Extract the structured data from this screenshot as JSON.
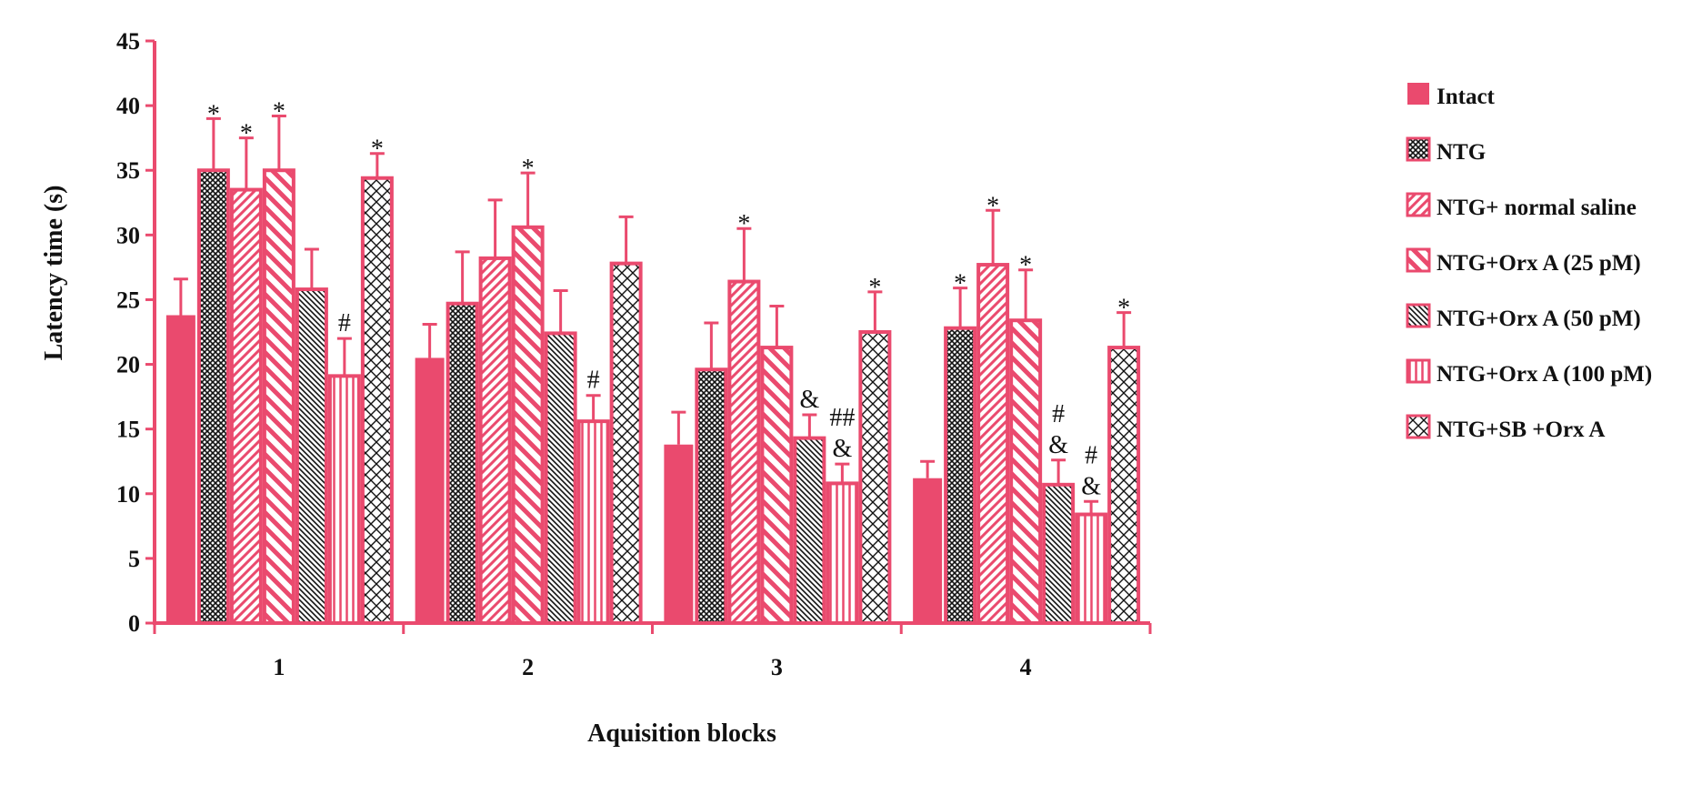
{
  "chart_data": {
    "type": "bar",
    "title": "",
    "xlabel": "Aquisition  blocks",
    "ylabel": "Latency time (s)",
    "ylim": [
      0,
      45
    ],
    "yticks": [
      0,
      5,
      10,
      15,
      20,
      25,
      30,
      35,
      40,
      45
    ],
    "categories": [
      "1",
      "2",
      "3",
      "4"
    ],
    "grid": false,
    "legend_position": "right",
    "colors": {
      "accent": "#ea4a6e",
      "ink": "#111111"
    },
    "series": [
      {
        "name": "Intact",
        "pattern": "solid",
        "values": [
          23.8,
          20.5,
          13.8,
          11.2
        ],
        "errors": [
          2.8,
          2.6,
          2.5,
          1.3
        ]
      },
      {
        "name": "NTG",
        "pattern": "crosshatch",
        "values": [
          35.0,
          24.7,
          19.6,
          22.8
        ],
        "errors": [
          4.0,
          4.0,
          3.6,
          3.1
        ]
      },
      {
        "name": "NTG+ normal saline",
        "pattern": "diag-right",
        "values": [
          33.5,
          28.2,
          26.4,
          27.7
        ],
        "errors": [
          4.0,
          4.5,
          4.1,
          4.2
        ]
      },
      {
        "name": "NTG+Orx A (25 pM)",
        "pattern": "diag-left-wide",
        "values": [
          35.0,
          30.6,
          21.3,
          23.4
        ],
        "errors": [
          4.2,
          4.2,
          3.2,
          3.9
        ]
      },
      {
        "name": "NTG+Orx A (50 pM)",
        "pattern": "diag-left-dense",
        "values": [
          25.8,
          22.4,
          14.3,
          10.7
        ],
        "errors": [
          3.1,
          3.3,
          1.8,
          1.9
        ]
      },
      {
        "name": "NTG+Orx A (100 pM)",
        "pattern": "vertical",
        "values": [
          19.1,
          15.6,
          10.8,
          8.4
        ],
        "errors": [
          2.9,
          2.0,
          1.5,
          1.0
        ]
      },
      {
        "name": "NTG+SB +Orx A",
        "pattern": "diamond",
        "values": [
          34.4,
          27.8,
          22.5,
          21.3
        ],
        "errors": [
          1.9,
          3.6,
          3.1,
          2.7
        ]
      }
    ],
    "annotations": [
      {
        "category": 0,
        "series": 1,
        "text": "*"
      },
      {
        "category": 0,
        "series": 2,
        "text": "*"
      },
      {
        "category": 0,
        "series": 3,
        "text": "*"
      },
      {
        "category": 0,
        "series": 5,
        "text": "#"
      },
      {
        "category": 0,
        "series": 6,
        "text": "*"
      },
      {
        "category": 1,
        "series": 3,
        "text": "*"
      },
      {
        "category": 1,
        "series": 5,
        "text": "#"
      },
      {
        "category": 2,
        "series": 2,
        "text": "*"
      },
      {
        "category": 2,
        "series": 4,
        "text": "&"
      },
      {
        "category": 2,
        "series": 5,
        "text": "##",
        "line": 1
      },
      {
        "category": 2,
        "series": 5,
        "text": "&",
        "line": 0
      },
      {
        "category": 2,
        "series": 6,
        "text": "*"
      },
      {
        "category": 3,
        "series": 1,
        "text": "*"
      },
      {
        "category": 3,
        "series": 2,
        "text": "*"
      },
      {
        "category": 3,
        "series": 3,
        "text": "*"
      },
      {
        "category": 3,
        "series": 4,
        "text": "#",
        "line": 1
      },
      {
        "category": 3,
        "series": 4,
        "text": "&",
        "line": 0
      },
      {
        "category": 3,
        "series": 5,
        "text": "#",
        "line": 1
      },
      {
        "category": 3,
        "series": 5,
        "text": "&",
        "line": 0
      },
      {
        "category": 3,
        "series": 6,
        "text": "*"
      }
    ]
  }
}
